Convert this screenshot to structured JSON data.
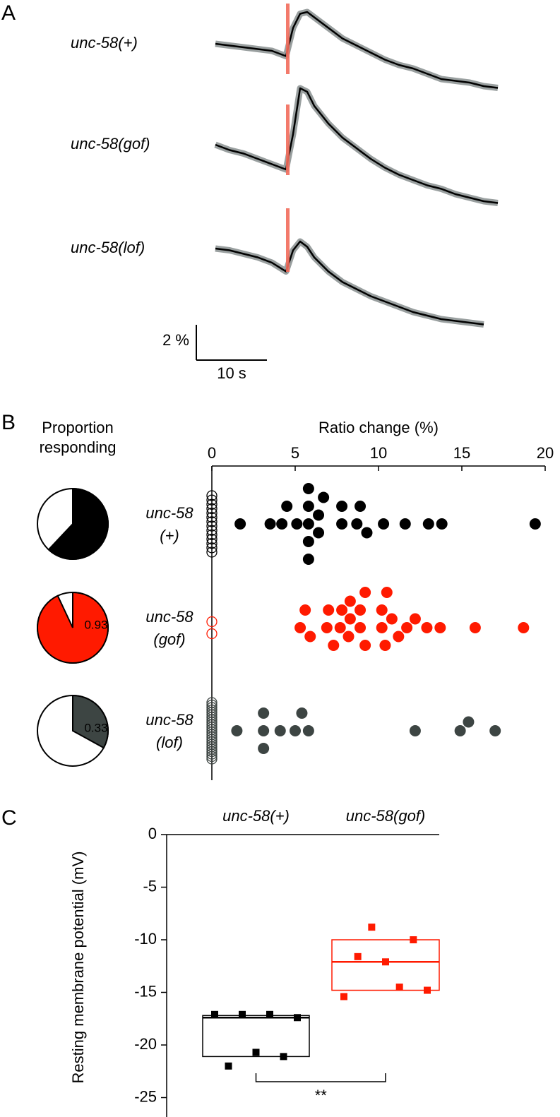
{
  "chart_data": [
    {
      "type": "line",
      "panel_label": "A",
      "stimulus": [
        10,
        10.5
      ],
      "scale_bar": {
        "y_value": 2,
        "y_label": "2 %",
        "x_value": 10,
        "x_label": "10 s"
      },
      "series": [
        {
          "name": "unc-58(+)",
          "color": "#000000",
          "x": [
            0,
            2,
            4,
            6,
            8,
            10,
            11,
            12,
            13,
            14,
            16,
            18,
            20,
            22,
            24,
            26,
            28,
            30,
            32,
            34,
            36,
            38,
            40
          ],
          "values": [
            0,
            -0.1,
            -0.2,
            -0.3,
            -0.4,
            -0.7,
            0.9,
            1.7,
            1.8,
            1.5,
            0.9,
            0.3,
            -0.1,
            -0.5,
            -0.9,
            -1.2,
            -1.4,
            -1.7,
            -2.0,
            -2.1,
            -2.2,
            -2.4,
            -2.5
          ]
        },
        {
          "name": "unc-58(gof)",
          "color": "#000000",
          "x": [
            0,
            2,
            4,
            6,
            8,
            10,
            11,
            12,
            13,
            14,
            16,
            18,
            20,
            22,
            24,
            26,
            28,
            30,
            32,
            34,
            36,
            38,
            40
          ],
          "values": [
            0,
            -0.3,
            -0.5,
            -0.8,
            -1.1,
            -1.4,
            0.6,
            3.2,
            3.0,
            2.2,
            1.2,
            0.4,
            -0.2,
            -0.8,
            -1.3,
            -1.7,
            -2.0,
            -2.3,
            -2.5,
            -2.8,
            -3.0,
            -3.2,
            -3.3
          ]
        },
        {
          "name": "unc-58(lof)",
          "color": "#000000",
          "x": [
            0,
            2,
            4,
            6,
            8,
            10,
            11,
            12,
            13,
            14,
            16,
            18,
            20,
            22,
            24,
            26,
            28,
            30,
            32,
            34,
            36,
            38
          ],
          "values": [
            0,
            -0.1,
            -0.3,
            -0.5,
            -0.8,
            -1.3,
            -0.1,
            0.4,
            0.1,
            -0.5,
            -1.3,
            -1.9,
            -2.3,
            -2.7,
            -3.0,
            -3.3,
            -3.6,
            -3.8,
            -4.0,
            -4.1,
            -4.2,
            -4.3
          ]
        }
      ]
    },
    {
      "type": "pie",
      "panel_label": "B",
      "title_lines": [
        "Proportion",
        "responding"
      ],
      "values": [
        0.62,
        0.93,
        0.33
      ],
      "colors": [
        "#000000",
        "#ff1a00",
        "#3d4543"
      ],
      "label_colors": [
        "#ffffff",
        "#000000",
        "#000000"
      ]
    },
    {
      "type": "scatter",
      "xlabel": "Ratio change (%)",
      "xlim": [
        0,
        20
      ],
      "xticks": [
        0,
        5,
        10,
        15,
        20
      ],
      "categories": [
        [
          "unc-58",
          "(+)"
        ],
        [
          "unc-58",
          "(gof)"
        ],
        [
          "unc-58",
          "(lof)"
        ]
      ],
      "series": [
        {
          "color": "#000000",
          "values": [
            0,
            0,
            0,
            0,
            0,
            0,
            0,
            0,
            0,
            0,
            0,
            0,
            0,
            0,
            1.7,
            3.5,
            4.2,
            4.5,
            5.1,
            5.8,
            5.8,
            5.8,
            5.8,
            5.8,
            6.4,
            6.4,
            6.7,
            7.8,
            7.8,
            8.7,
            8.9,
            9.3,
            10.3,
            11.6,
            13.0,
            13.8,
            19.4
          ]
        },
        {
          "color": "#ff1a00",
          "values": [
            0,
            0,
            5.3,
            5.6,
            5.9,
            6.9,
            7.0,
            7.3,
            7.7,
            7.8,
            8.2,
            8.3,
            8.3,
            8.9,
            8.9,
            9.2,
            9.2,
            10.2,
            10.2,
            10.4,
            10.5,
            10.8,
            11.2,
            11.7,
            12.2,
            12.9,
            13.7,
            15.8,
            18.7
          ]
        },
        {
          "color": "#3d4543",
          "values": [
            0,
            0,
            0,
            0,
            0,
            0,
            0,
            0,
            0,
            0,
            0,
            0,
            0,
            0,
            0,
            0,
            0,
            0,
            0,
            0,
            0,
            0,
            0,
            0,
            1.5,
            3.1,
            3.1,
            3.1,
            4.1,
            5.0,
            5.4,
            5.8,
            12.2,
            14.9,
            15.4,
            17.0
          ]
        }
      ]
    },
    {
      "type": "box",
      "panel_label": "C",
      "ylabel": "Resting membrane potential (mV)",
      "ylim": [
        -25,
        0
      ],
      "yticks": [
        0,
        -5,
        -10,
        -15,
        -20,
        -25
      ],
      "categories": [
        "unc-58(+)",
        "unc-58(gof)"
      ],
      "annotation": "**",
      "series": [
        {
          "color": "#000000",
          "values": [
            -17.1,
            -22.0,
            -17.1,
            -20.7,
            -17.1,
            -21.1,
            -17.4
          ],
          "q1": -21.1,
          "median": -17.4,
          "q3": -17.2
        },
        {
          "color": "#ff1a00",
          "values": [
            -15.4,
            -11.6,
            -8.8,
            -12.1,
            -14.5,
            -10.0,
            -14.8
          ],
          "q1": -14.8,
          "median": -12.1,
          "q3": -10.0
        }
      ]
    }
  ]
}
